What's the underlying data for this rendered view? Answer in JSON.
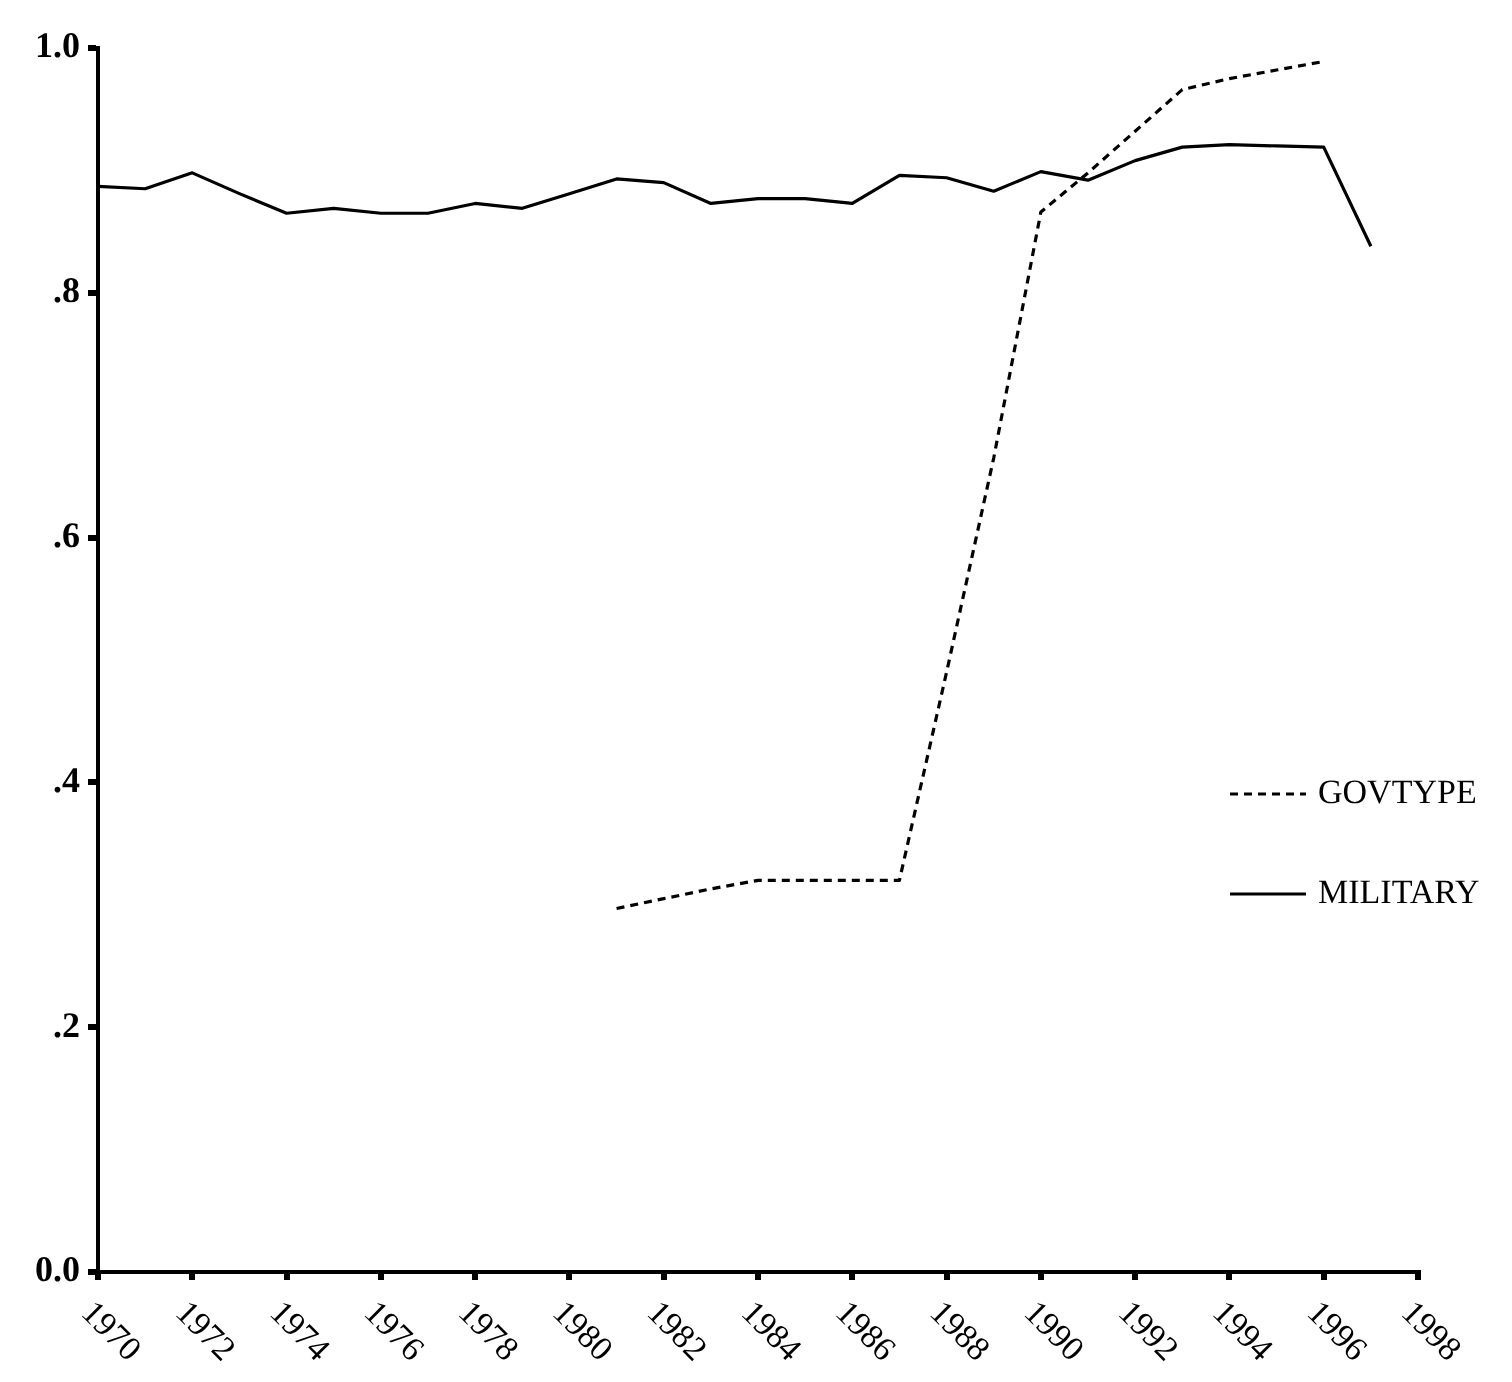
{
  "chart_data": {
    "type": "line",
    "xlim": [
      1970,
      1998
    ],
    "xticks": [
      1970,
      1972,
      1974,
      1976,
      1978,
      1980,
      1982,
      1984,
      1986,
      1988,
      1990,
      1992,
      1994,
      1996,
      1998
    ],
    "ylim": [
      0,
      1
    ],
    "yticks": [
      {
        "value": 0,
        "label": "0.0"
      },
      {
        "value": 0.2,
        "label": ".2"
      },
      {
        "value": 0.4,
        "label": ".4"
      },
      {
        "value": 0.6,
        "label": ".6"
      },
      {
        "value": 0.8,
        "label": ".8"
      },
      {
        "value": 1,
        "label": "1.0"
      }
    ],
    "grid": false,
    "legend": "right",
    "marker": "none",
    "series": [
      {
        "name": "GOVTYPE",
        "color": "#000000",
        "line_style": "dashed",
        "x": [
          1981,
          1982,
          1983,
          1984,
          1985,
          1986,
          1987,
          1988,
          1989,
          1990,
          1991,
          1992,
          1993,
          1994,
          1995,
          1996
        ],
        "values": [
          0.297,
          0.305,
          0.313,
          0.32,
          0.32,
          0.32,
          0.32,
          0.49,
          0.665,
          0.866,
          0.898,
          0.932,
          0.966,
          0.975,
          0.982,
          0.989
        ]
      },
      {
        "name": "MILITARY",
        "color": "#000000",
        "line_style": "solid",
        "x": [
          1970,
          1971,
          1972,
          1973,
          1974,
          1975,
          1976,
          1977,
          1978,
          1979,
          1980,
          1981,
          1982,
          1983,
          1984,
          1985,
          1986,
          1987,
          1988,
          1989,
          1990,
          1991,
          1992,
          1993,
          1994,
          1995,
          1996,
          1997
        ],
        "values": [
          0.887,
          0.885,
          0.898,
          0.881,
          0.865,
          0.869,
          0.865,
          0.865,
          0.873,
          0.869,
          0.881,
          0.893,
          0.89,
          0.873,
          0.877,
          0.877,
          0.873,
          0.896,
          0.894,
          0.883,
          0.899,
          0.892,
          0.908,
          0.919,
          0.921,
          0.92,
          0.919,
          0.838
        ]
      }
    ]
  }
}
